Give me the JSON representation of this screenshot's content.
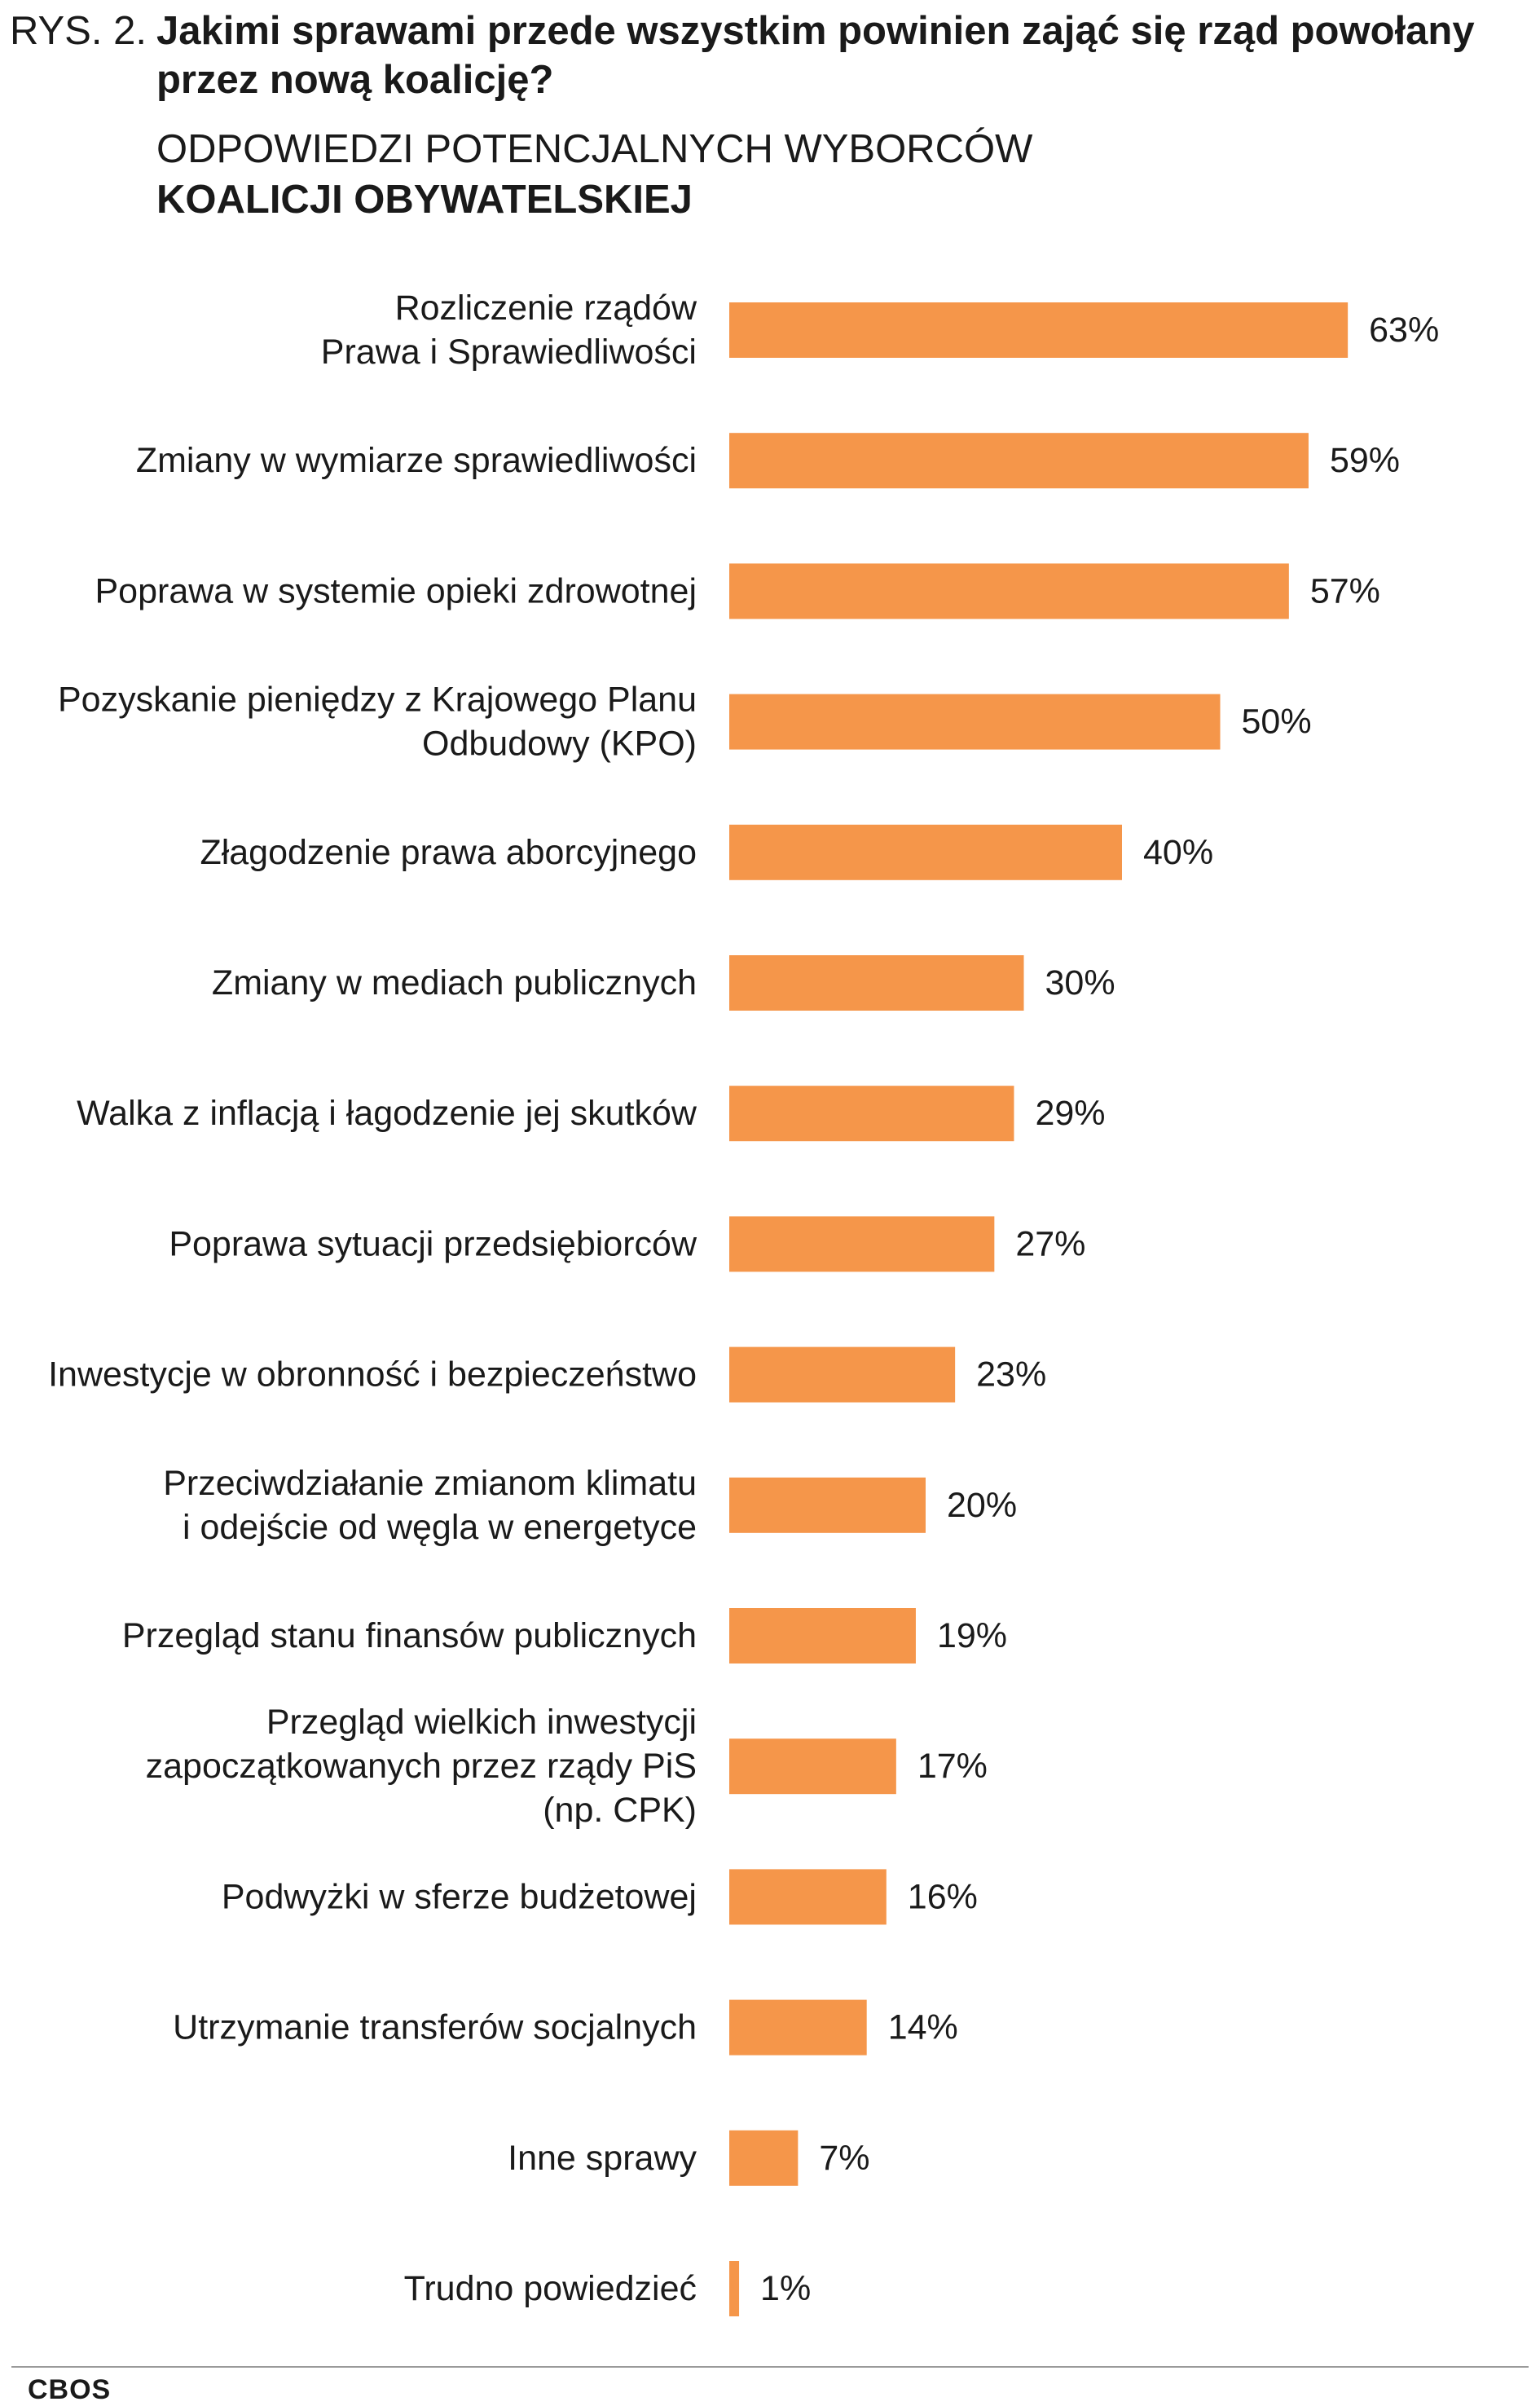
{
  "header": {
    "figure_prefix": "RYS. 2.",
    "question": "Jakimi sprawami przede wszystkim powinien zająć się rząd powołany przez nową koalicję?",
    "subtitle_line1": "ODPOWIEDZI POTENCJALNYCH WYBORCÓW",
    "subtitle_line2": "KOALICJI OBYWATELSKIEJ"
  },
  "footer": {
    "source": "CBOS"
  },
  "colors": {
    "bar": "#F5964A",
    "text": "#1a1a1a",
    "rule": "#9a9a9a"
  },
  "chart_data": {
    "type": "bar",
    "orientation": "horizontal",
    "unit": "%",
    "xlim": [
      0,
      63
    ],
    "grid": false,
    "legend": "none",
    "categories": [
      [
        "Rozliczenie rządów",
        "Prawa i Sprawiedliwości"
      ],
      [
        "Zmiany w wymiarze sprawiedliwości"
      ],
      [
        "Poprawa w systemie opieki zdrowotnej"
      ],
      [
        "Pozyskanie pieniędzy z Krajowego Planu",
        "Odbudowy (KPO)"
      ],
      [
        "Złagodzenie prawa aborcyjnego"
      ],
      [
        "Zmiany w mediach publicznych"
      ],
      [
        "Walka z inflacją i łagodzenie jej skutków"
      ],
      [
        "Poprawa sytuacji przedsiębiorców"
      ],
      [
        "Inwestycje w obronność i bezpieczeństwo"
      ],
      [
        "Przeciwdziałanie zmianom klimatu",
        "i odejście od węgla w energetyce"
      ],
      [
        "Przegląd stanu finansów publicznych"
      ],
      [
        "Przegląd wielkich inwestycji",
        "zapoczątkowanych przez rządy PiS",
        "(np. CPK)"
      ],
      [
        "Podwyżki w sferze budżetowej"
      ],
      [
        "Utrzymanie transferów socjalnych"
      ],
      [
        "Inne sprawy"
      ],
      [
        "Trudno powiedzieć"
      ]
    ],
    "values": [
      63,
      59,
      57,
      50,
      40,
      30,
      29,
      27,
      23,
      20,
      19,
      17,
      16,
      14,
      7,
      1
    ],
    "value_labels": [
      "63%",
      "59%",
      "57%",
      "50%",
      "40%",
      "30%",
      "29%",
      "27%",
      "23%",
      "20%",
      "19%",
      "17%",
      "16%",
      "14%",
      "7%",
      "1%"
    ]
  }
}
